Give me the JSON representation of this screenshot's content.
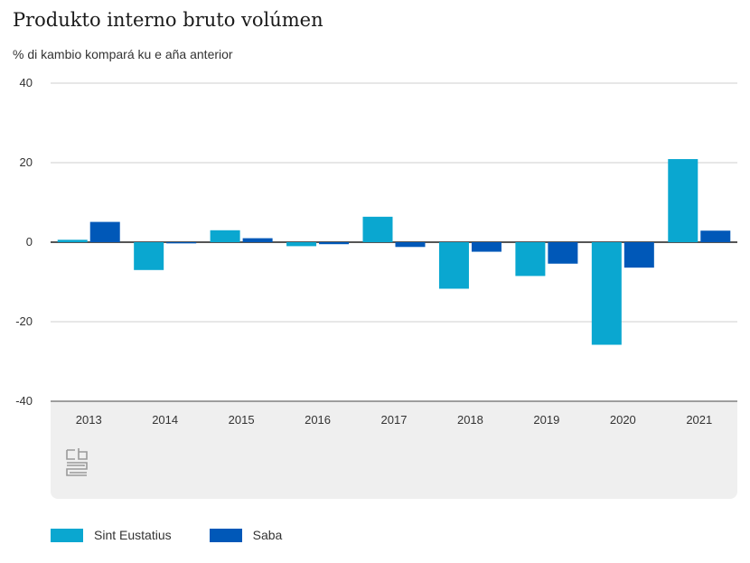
{
  "chart_data": {
    "type": "bar",
    "title": "Produkto interno bruto volúmen",
    "subtitle": "% di kambio kompará ku e aña anterior",
    "categories": [
      "2013",
      "2014",
      "2015",
      "2016",
      "2017",
      "2018",
      "2019",
      "2020",
      "2021"
    ],
    "series": [
      {
        "name": "Sint Eustatius",
        "color": "#0aa7d0",
        "values": [
          0.6,
          -7.0,
          3.0,
          -1.0,
          6.4,
          -11.7,
          -8.5,
          -25.8,
          20.9
        ]
      },
      {
        "name": "Saba",
        "color": "#0058b8",
        "values": [
          5.1,
          -0.3,
          1.0,
          -0.5,
          -1.2,
          -2.4,
          -5.4,
          -6.4,
          2.9
        ]
      }
    ],
    "ylim": [
      -40,
      40
    ],
    "yticks": [
      40,
      20,
      0,
      -20,
      -40
    ],
    "xlabel": "",
    "ylabel": ""
  },
  "legend": {
    "items": [
      {
        "label": "Sint Eustatius",
        "color": "#0aa7d0"
      },
      {
        "label": "Saba",
        "color": "#0058b8"
      }
    ]
  },
  "logo": {
    "icon": "cbs-logo-icon"
  }
}
